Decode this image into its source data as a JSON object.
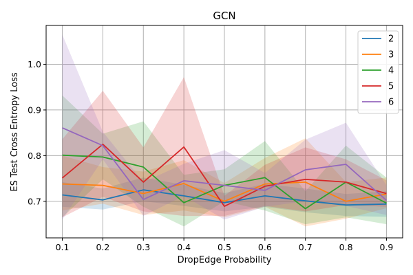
{
  "chart_data": {
    "type": "line",
    "title": "GCN",
    "xlabel": "DropEdge Probability",
    "ylabel": "ES Test Cross Entropy Loss",
    "x": [
      0.1,
      0.2,
      0.3,
      0.4,
      0.5,
      0.6,
      0.7,
      0.8,
      0.9
    ],
    "x_ticks": [
      "0.1",
      "0.2",
      "0.3",
      "0.4",
      "0.5",
      "0.6",
      "0.7",
      "0.8",
      "0.9"
    ],
    "y_ticks": [
      "0.7",
      "0.8",
      "0.9",
      "1.0"
    ],
    "y_tick_values": [
      0.7,
      0.8,
      0.9,
      1.0
    ],
    "xlim": [
      0.06,
      0.94
    ],
    "ylim": [
      0.62,
      1.085
    ],
    "grid": true,
    "legend_position": "upper right",
    "series": [
      {
        "name": "2",
        "color": "#1f77b4",
        "values": [
          0.714,
          0.703,
          0.725,
          0.712,
          0.697,
          0.712,
          0.701,
          0.692,
          0.694
        ],
        "lower": [
          0.688,
          0.682,
          0.7,
          0.69,
          0.678,
          0.688,
          0.676,
          0.668,
          0.666
        ],
        "upper": [
          0.742,
          0.728,
          0.752,
          0.736,
          0.718,
          0.738,
          0.728,
          0.716,
          0.722
        ]
      },
      {
        "name": "3",
        "color": "#ff7f0e",
        "values": [
          0.738,
          0.735,
          0.717,
          0.739,
          0.7,
          0.738,
          0.742,
          0.7,
          0.716
        ],
        "lower": [
          0.68,
          0.695,
          0.67,
          0.68,
          0.665,
          0.688,
          0.645,
          0.662,
          0.685
        ],
        "upper": [
          0.8,
          0.775,
          0.765,
          0.79,
          0.74,
          0.795,
          0.838,
          0.742,
          0.752
        ]
      },
      {
        "name": "4",
        "color": "#2ca02c",
        "values": [
          0.801,
          0.797,
          0.775,
          0.697,
          0.735,
          0.752,
          0.684,
          0.742,
          0.696
        ],
        "lower": [
          0.665,
          0.748,
          0.688,
          0.645,
          0.7,
          0.68,
          0.65,
          0.665,
          0.65
        ],
        "upper": [
          0.932,
          0.848,
          0.875,
          0.758,
          0.77,
          0.832,
          0.722,
          0.822,
          0.752
        ]
      },
      {
        "name": "5",
        "color": "#d62728",
        "values": [
          0.751,
          0.825,
          0.742,
          0.819,
          0.689,
          0.733,
          0.748,
          0.742,
          0.717
        ],
        "lower": [
          0.665,
          0.71,
          0.678,
          0.668,
          0.668,
          0.69,
          0.678,
          0.692,
          0.688
        ],
        "upper": [
          0.836,
          0.942,
          0.818,
          0.972,
          0.712,
          0.78,
          0.818,
          0.792,
          0.746
        ]
      },
      {
        "name": "6",
        "color": "#9467bd",
        "values": [
          0.861,
          0.822,
          0.704,
          0.745,
          0.735,
          0.724,
          0.769,
          0.781,
          0.702
        ],
        "lower": [
          0.66,
          0.792,
          0.668,
          0.712,
          0.66,
          0.688,
          0.7,
          0.69,
          0.67
        ],
        "upper": [
          1.065,
          0.852,
          0.742,
          0.782,
          0.812,
          0.762,
          0.835,
          0.872,
          0.735
        ]
      }
    ]
  }
}
